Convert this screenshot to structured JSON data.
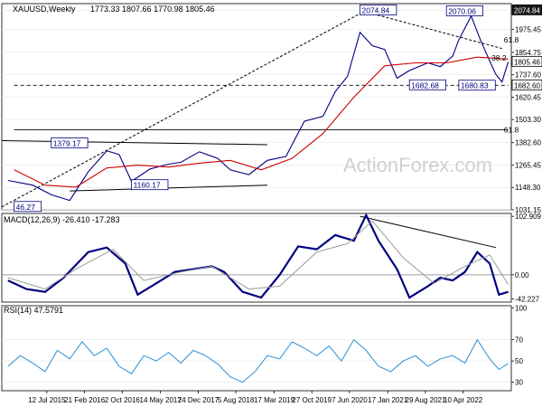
{
  "chart_data": [
    {
      "type": "line",
      "title": "XAUUSD,Weekly",
      "ohlc_label": "1773.33 1807.66 1770.98 1805.46",
      "ylim": [
        1031,
        2110
      ],
      "y_ticks": [
        "2074.84",
        "1975.45",
        "1854.75",
        "1737.60",
        "1620.45",
        "1503.30",
        "1382.60",
        "1265.45",
        "1148.30",
        "1031.15"
      ],
      "y_tick_values": [
        2074.84,
        1975.45,
        1854.75,
        1737.6,
        1620.45,
        1503.3,
        1382.6,
        1265.45,
        1148.3,
        1031.15
      ],
      "price_tags": [
        {
          "label": "2074.84",
          "value": 2074.84,
          "style": "dark"
        },
        {
          "label": "1805.46",
          "value": 1805.46,
          "style": "light"
        },
        {
          "label": "1682.60",
          "value": 1682.6,
          "style": "light"
        }
      ],
      "annotations": [
        {
          "text": "2074.84",
          "x": 2020.6,
          "y": 2074.84,
          "boxed": true
        },
        {
          "text": "2070.06",
          "x": 2022.0,
          "y": 2070.06,
          "boxed": true
        },
        {
          "text": "1379.17",
          "x": 2015.6,
          "y": 1379.17,
          "boxed": true
        },
        {
          "text": "1160.17",
          "x": 2016.9,
          "y": 1160.17,
          "boxed": true
        },
        {
          "text": "1682.68",
          "x": 2021.4,
          "y": 1682.68,
          "boxed": true
        },
        {
          "text": "1680.83",
          "x": 2022.2,
          "y": 1680.83,
          "boxed": true
        },
        {
          "text": "46.27",
          "x": 2015.0,
          "y": 1046.27,
          "boxed": true
        },
        {
          "text": "61.8",
          "x": 2022.9,
          "y": 1921,
          "boxed": false
        },
        {
          "text": "38.2",
          "x": 2022.7,
          "y": 1826,
          "boxed": false
        },
        {
          "text": "61.8",
          "x": 2022.9,
          "y": 1450,
          "boxed": false
        }
      ],
      "series": [
        {
          "name": "",
          "x": [
            2014.9,
            2015.3,
            2015.6,
            2015.9,
            2016.2,
            2016.5,
            2016.7,
            2016.9,
            2017.2,
            2017.5,
            2017.7,
            2018.0,
            2018.3,
            2018.5,
            2018.8,
            2019.1,
            2019.4,
            2019.7,
            2020.0,
            2020.2,
            2020.4,
            2020.6,
            2020.8,
            2021.0,
            2021.2,
            2021.4,
            2021.7,
            2021.9,
            2022.1,
            2022.2,
            2022.4,
            2022.55,
            2022.7,
            2022.8,
            2022.9,
            2023.0
          ],
          "values": [
            1185,
            1160,
            1110,
            1080,
            1230,
            1340,
            1320,
            1180,
            1245,
            1270,
            1280,
            1335,
            1300,
            1240,
            1215,
            1290,
            1310,
            1495,
            1520,
            1650,
            1730,
            1960,
            1890,
            1870,
            1720,
            1760,
            1800,
            1780,
            1835,
            1920,
            2045,
            1920,
            1810,
            1740,
            1700,
            1805
          ]
        },
        {
          "name": "",
          "x": [
            2015.0,
            2015.5,
            2016.0,
            2016.5,
            2017.0,
            2017.5,
            2018.0,
            2018.5,
            2019.0,
            2019.5,
            2020.0,
            2020.5,
            2021.0,
            2021.5,
            2022.0,
            2022.5,
            2023.0
          ],
          "values": [
            1240,
            1160,
            1150,
            1250,
            1265,
            1255,
            1275,
            1290,
            1240,
            1300,
            1430,
            1620,
            1785,
            1800,
            1800,
            1830,
            1820
          ]
        }
      ],
      "trendlines": [
        {
          "x": [
            2014.8,
            2020.7
          ],
          "y": [
            1046,
            2075
          ]
        },
        {
          "x": [
            2014.8,
            2019.1
          ],
          "y": [
            1393,
            1372
          ]
        },
        {
          "x": [
            2015.9,
            2019.1
          ],
          "y": [
            1130,
            1160
          ]
        },
        {
          "x": [
            2020.6,
            2022.9
          ],
          "y": [
            2075,
            1875
          ]
        },
        {
          "x": [
            2015.0,
            2023.0
          ],
          "y": [
            1682.6,
            1682.6
          ]
        },
        {
          "x": [
            2015.0,
            2023.0
          ],
          "y": [
            1450,
            1450
          ]
        }
      ]
    },
    {
      "type": "line",
      "title": "MACD(12,26,9) -26.410 -17.283",
      "ylim": [
        -48,
        108
      ],
      "y_ticks": [
        "102.909",
        "0.00",
        "-42.227"
      ],
      "y_tick_values": [
        102.909,
        0,
        -42.227
      ],
      "series": [
        {
          "name": "",
          "x": [
            2014.9,
            2015.2,
            2015.5,
            2015.8,
            2016.2,
            2016.5,
            2016.8,
            2017.0,
            2017.3,
            2017.6,
            2017.9,
            2018.2,
            2018.4,
            2018.7,
            2019.0,
            2019.3,
            2019.6,
            2019.9,
            2020.2,
            2020.5,
            2020.7,
            2020.9,
            2021.2,
            2021.4,
            2021.7,
            2021.9,
            2022.1,
            2022.3,
            2022.5,
            2022.7,
            2022.85,
            2023.0
          ],
          "values": [
            -10,
            -25,
            -30,
            -5,
            40,
            48,
            20,
            -35,
            -15,
            5,
            10,
            15,
            5,
            -30,
            -40,
            0,
            50,
            45,
            70,
            60,
            105,
            60,
            10,
            -40,
            -20,
            -5,
            -10,
            5,
            40,
            20,
            -35,
            -30
          ]
        },
        {
          "name": "",
          "x": [
            2014.9,
            2015.5,
            2016.0,
            2016.6,
            2017.1,
            2017.7,
            2018.2,
            2018.8,
            2019.3,
            2019.9,
            2020.4,
            2020.8,
            2021.3,
            2021.8,
            2022.3,
            2022.7,
            2023.0
          ],
          "values": [
            -5,
            -25,
            10,
            45,
            -10,
            5,
            15,
            -25,
            -20,
            40,
            55,
            95,
            30,
            -15,
            15,
            35,
            -17
          ]
        }
      ],
      "trendlines": [
        {
          "x": [
            2020.6,
            2022.8
          ],
          "y": [
            103,
            48
          ]
        }
      ]
    },
    {
      "type": "line",
      "title": "RSI(14) 47.5791",
      "ylim": [
        22,
        102
      ],
      "y_ticks": [
        "100",
        "70",
        "50",
        "30"
      ],
      "y_tick_values": [
        100,
        70,
        50,
        30
      ],
      "x_ticks": [
        "12 Jul 2015",
        "21 Feb 2016",
        "2 Oct 2016",
        "14 May 2017",
        "24 Dec 2017",
        "5 Aug 2018",
        "17 Mar 2019",
        "27 Oct 2019",
        "7 Jun 2020",
        "17 Jan 2021",
        "29 Aug 2021",
        "10 Apr 2022"
      ],
      "x_tick_values": [
        2015.53,
        2016.14,
        2016.75,
        2017.37,
        2017.98,
        2018.59,
        2019.21,
        2019.82,
        2020.43,
        2021.05,
        2021.66,
        2022.27
      ],
      "series": [
        {
          "name": "",
          "x": [
            2014.9,
            2015.1,
            2015.3,
            2015.5,
            2015.7,
            2015.9,
            2016.1,
            2016.3,
            2016.5,
            2016.7,
            2016.9,
            2017.1,
            2017.3,
            2017.5,
            2017.7,
            2017.9,
            2018.1,
            2018.3,
            2018.5,
            2018.7,
            2018.9,
            2019.1,
            2019.3,
            2019.5,
            2019.7,
            2019.9,
            2020.1,
            2020.3,
            2020.5,
            2020.7,
            2020.9,
            2021.1,
            2021.3,
            2021.5,
            2021.7,
            2021.9,
            2022.1,
            2022.3,
            2022.5,
            2022.7,
            2022.85,
            2023.0
          ],
          "values": [
            45,
            55,
            48,
            40,
            60,
            52,
            68,
            55,
            62,
            45,
            38,
            55,
            50,
            58,
            48,
            60,
            55,
            47,
            35,
            30,
            40,
            55,
            52,
            68,
            62,
            55,
            64,
            50,
            70,
            60,
            45,
            40,
            50,
            55,
            45,
            52,
            55,
            48,
            70,
            52,
            42,
            47.58
          ]
        }
      ]
    }
  ],
  "watermark": "ActionForex.com"
}
